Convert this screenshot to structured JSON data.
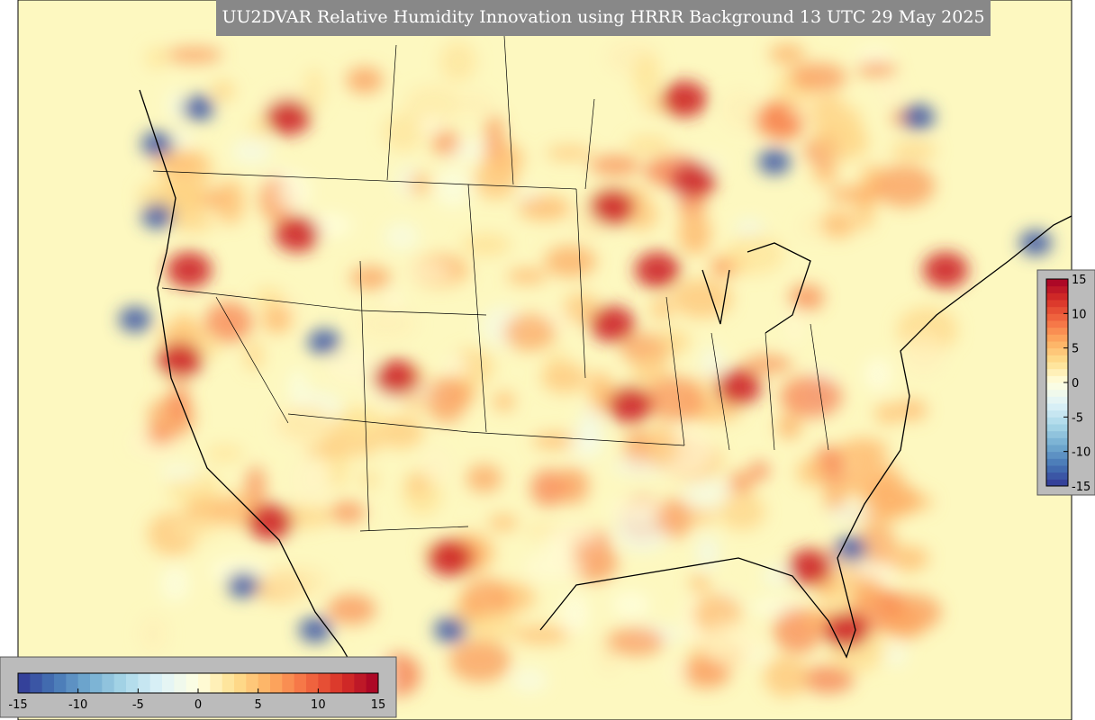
{
  "title": "UU2DVAR Relative Humidity Innovation using HRRR Background 13 UTC 29 May 2025",
  "colorbar": {
    "vmin": -15,
    "vmax": 15,
    "ticks": [
      -15,
      -10,
      -5,
      0,
      5,
      10,
      15
    ],
    "colormap": [
      "#313695",
      "#4575b4",
      "#74add1",
      "#abd9e9",
      "#e0f3f8",
      "#ffffe0",
      "#fee090",
      "#fdae61",
      "#f46d43",
      "#d73027",
      "#a50026"
    ]
  }
}
